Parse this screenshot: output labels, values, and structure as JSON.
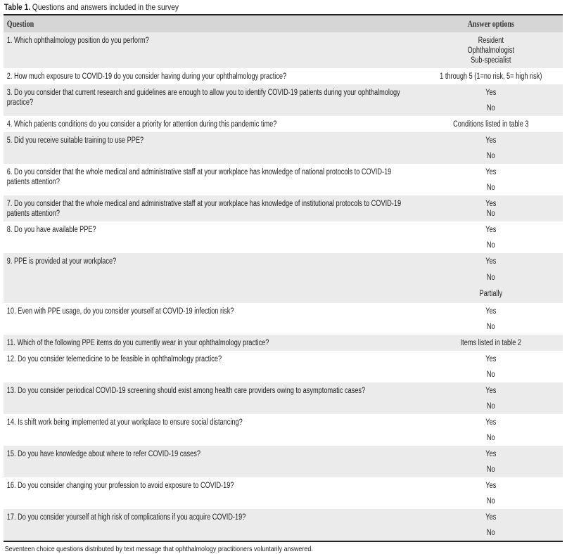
{
  "caption": {
    "label": "Table 1.",
    "text": " Questions and answers included in the survey"
  },
  "header": {
    "question": "Question",
    "answers": "Answer options"
  },
  "rows": [
    {
      "question": "1. Which ophthalmology position do you perform?",
      "answers": [
        "Resident",
        "Ophthalmologist",
        "Sub-specialist"
      ]
    },
    {
      "question": "2. How much exposure to COVID-19 do you consider having during your ophthalmology practice?",
      "answers": [
        "1 through 5 (1=no risk, 5= high risk)"
      ]
    },
    {
      "question": "3. Do you consider that current research and guidelines are enough to allow you to identify COVID-19 patients during your ophthalmology practice?",
      "answers": [
        "Yes",
        "No"
      ]
    },
    {
      "question": "4. Which patients conditions do you consider a priority for attention during this pandemic time?",
      "answers": [
        "Conditions listed in table 3"
      ]
    },
    {
      "question": "5. Did you receive suitable training to use PPE?",
      "answers": [
        "Yes",
        "No"
      ]
    },
    {
      "question": "6. Do you consider that the whole medical and administrative staff at your workplace has knowledge of national protocols to COVID-19 patients attention?",
      "answers": [
        "Yes",
        "No"
      ]
    },
    {
      "question": "7. Do you consider that the whole medical and administrative staff at your workplace has knowledge of institutional protocols to COVID-19 patients attention?",
      "answers": [
        "Yes",
        "No"
      ]
    },
    {
      "question": "8. Do you have available PPE?",
      "answers": [
        "Yes",
        "No"
      ]
    },
    {
      "question": "9. PPE is provided at your workplace?",
      "answers": [
        "Yes",
        "No",
        "Partially"
      ]
    },
    {
      "question": "10. Even with PPE usage, do you consider yourself at COVID-19 infection risk?",
      "answers": [
        "Yes",
        "No"
      ]
    },
    {
      "question": "11. Which of the following PPE items do you currently wear in your ophthalmology practice?",
      "answers": [
        "Items listed in table 2"
      ]
    },
    {
      "question": "12. Do you consider telemedicine to be feasible in ophthalmology practice?",
      "answers": [
        "Yes",
        "No"
      ]
    },
    {
      "question": "13. Do you consider periodical COVID-19 screening should exist among health care providers owing to asymptomatic cases?",
      "answers": [
        "Yes",
        "No"
      ]
    },
    {
      "question": "14. Is shift work being implemented at your workplace to ensure social distancing?",
      "answers": [
        "Yes",
        "No"
      ]
    },
    {
      "question": "15. Do you have knowledge about where to refer COVID-19 cases?",
      "answers": [
        "Yes",
        "No"
      ]
    },
    {
      "question": "16. Do you consider changing your profession to avoid exposure to COVID-19?",
      "answers": [
        "Yes",
        "No"
      ]
    },
    {
      "question": "17. Do you consider yourself at high risk of complications if you acquire COVID-19?",
      "answers": [
        "Yes",
        "No"
      ]
    }
  ],
  "footnote": "Seventeen choice questions distributed by text message that ophthalmology practitioners voluntarily answered.",
  "colors": {
    "row_shade": "#ebebeb",
    "header_shade": "#d6d6d6"
  }
}
